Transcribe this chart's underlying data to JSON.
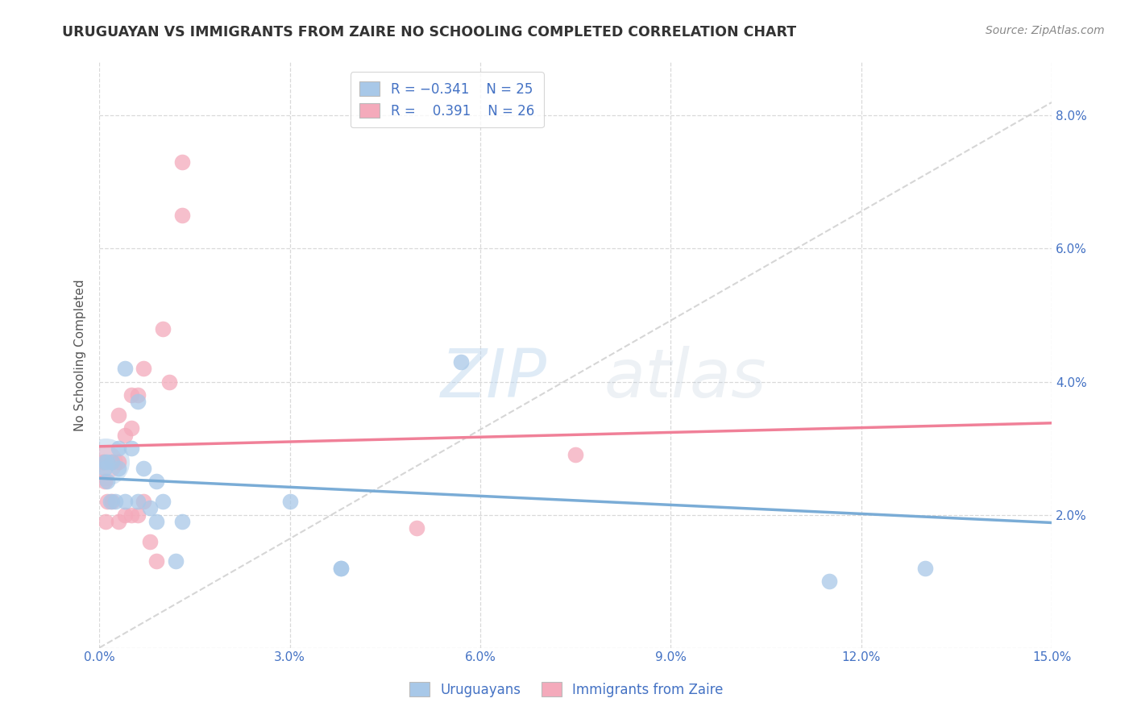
{
  "title": "URUGUAYAN VS IMMIGRANTS FROM ZAIRE NO SCHOOLING COMPLETED CORRELATION CHART",
  "source": "Source: ZipAtlas.com",
  "ylabel": "No Schooling Completed",
  "xlim": [
    0.0,
    0.15
  ],
  "ylim": [
    0.0,
    0.088
  ],
  "xticks": [
    0.0,
    0.03,
    0.06,
    0.09,
    0.12,
    0.15
  ],
  "yticks": [
    0.0,
    0.02,
    0.04,
    0.06,
    0.08
  ],
  "xticklabels": [
    "0.0%",
    "3.0%",
    "6.0%",
    "9.0%",
    "12.0%",
    "15.0%"
  ],
  "yticklabels_right": [
    "",
    "2.0%",
    "4.0%",
    "6.0%",
    "8.0%"
  ],
  "blue_color": "#7aacd6",
  "pink_color": "#f08098",
  "blue_scatter": "#a8c8e8",
  "pink_scatter": "#f4aabb",
  "background_color": "#ffffff",
  "grid_color": "#d0d0d0",
  "uruguayan_x": [
    0.0008,
    0.0008,
    0.0012,
    0.0012,
    0.0018,
    0.002,
    0.0025,
    0.003,
    0.003,
    0.004,
    0.004,
    0.005,
    0.006,
    0.006,
    0.007,
    0.008,
    0.009,
    0.009,
    0.01,
    0.012,
    0.013,
    0.03,
    0.038,
    0.038,
    0.057,
    0.115,
    0.13
  ],
  "uruguayan_y": [
    0.028,
    0.027,
    0.025,
    0.028,
    0.022,
    0.028,
    0.022,
    0.027,
    0.03,
    0.022,
    0.042,
    0.03,
    0.022,
    0.037,
    0.027,
    0.021,
    0.019,
    0.025,
    0.022,
    0.013,
    0.019,
    0.022,
    0.012,
    0.012,
    0.043,
    0.01,
    0.012
  ],
  "zaire_x": [
    0.0006,
    0.0008,
    0.001,
    0.0012,
    0.002,
    0.002,
    0.003,
    0.003,
    0.003,
    0.004,
    0.004,
    0.005,
    0.005,
    0.005,
    0.006,
    0.006,
    0.007,
    0.007,
    0.008,
    0.009,
    0.01,
    0.011,
    0.013,
    0.013,
    0.05,
    0.075
  ],
  "zaire_y": [
    0.028,
    0.025,
    0.019,
    0.022,
    0.028,
    0.022,
    0.028,
    0.035,
    0.019,
    0.032,
    0.02,
    0.033,
    0.038,
    0.02,
    0.038,
    0.02,
    0.042,
    0.022,
    0.016,
    0.013,
    0.048,
    0.04,
    0.065,
    0.073,
    0.018,
    0.029
  ]
}
